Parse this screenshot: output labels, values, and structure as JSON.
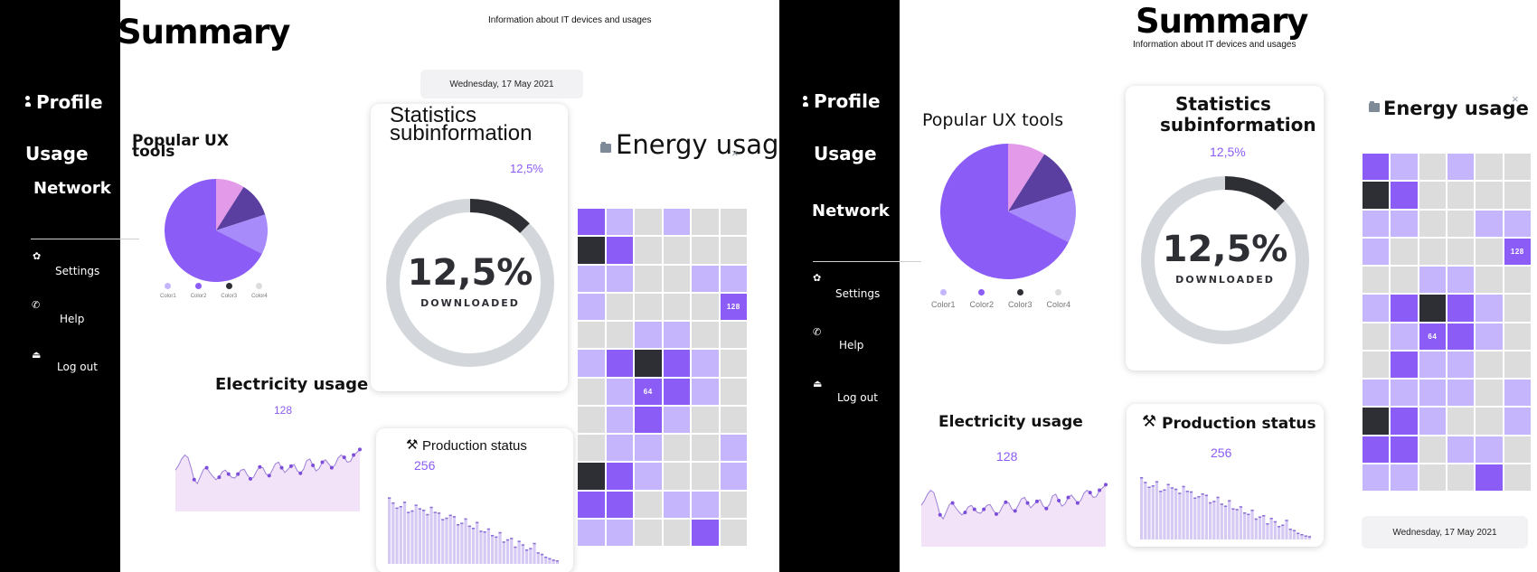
{
  "page": {
    "title": "Summary",
    "subtitle": "Information about IT devices and usages",
    "date": "Wednesday, 17 May 2021"
  },
  "sidebar": {
    "profile": "Profile",
    "usage": "Usage",
    "network": "Network",
    "settings": "Settings",
    "help": "Help",
    "logout": "Log out"
  },
  "ux_tools": {
    "title": "Popular UX tools",
    "legend": [
      "Color1",
      "Color2",
      "Color3",
      "Color4"
    ],
    "colors": [
      "#c4b5fd",
      "#8b5cf6",
      "#2d2f35",
      "#dcdcdc"
    ]
  },
  "statistics": {
    "title_line1": "Statistics",
    "title_line2": "subinformation",
    "percent_label": "12,5%",
    "big_value": "12,5%",
    "caption": "DOWNLOADED",
    "fraction": 0.125
  },
  "electricity": {
    "title": "Electricity usage",
    "value": "128"
  },
  "production": {
    "title": "Production status",
    "value": "256"
  },
  "energy": {
    "title": "Energy usage",
    "colors": {
      "L": "#c4b5fd",
      "M": "#8b5cf6",
      "D": "#2d2f35",
      "G": "#dcdcdc"
    }
  },
  "chart_data": [
    {
      "type": "pie",
      "title": "Popular UX tools",
      "slices": [
        {
          "name": "Color1",
          "value": 67.5,
          "color": "#8b5cf6"
        },
        {
          "name": "Color2",
          "value": 12.5,
          "color": "#a78bfa"
        },
        {
          "name": "Color3",
          "value": 11,
          "color": "#5b3fa0"
        },
        {
          "name": "Color4",
          "value": 9,
          "color": "#e39ae8"
        }
      ]
    },
    {
      "type": "area",
      "title": "Electricity usage",
      "x": [
        0,
        1,
        2,
        3,
        4,
        5,
        6,
        7,
        8,
        9,
        10,
        11,
        12,
        13,
        14,
        15,
        16,
        17,
        18,
        19,
        20,
        21,
        22,
        23,
        24,
        25,
        26,
        27,
        28,
        29,
        30,
        31,
        32,
        33,
        34,
        35,
        36,
        37,
        38,
        39,
        40,
        41,
        42,
        43,
        44,
        45,
        46,
        47,
        48,
        49,
        50,
        51,
        52,
        53,
        54,
        55,
        56,
        57,
        58,
        59
      ],
      "values": [
        52,
        58,
        66,
        71,
        68,
        55,
        40,
        35,
        44,
        53,
        55,
        49,
        44,
        40,
        43,
        50,
        52,
        47,
        43,
        42,
        47,
        52,
        53,
        46,
        41,
        43,
        51,
        56,
        55,
        47,
        45,
        52,
        60,
        62,
        55,
        49,
        53,
        57,
        59,
        51,
        48,
        53,
        64,
        66,
        58,
        51,
        54,
        62,
        65,
        60,
        55,
        58,
        67,
        71,
        68,
        62,
        63,
        71,
        74,
        78
      ],
      "markers": [
        6,
        10,
        14,
        17,
        20,
        24,
        27,
        30,
        34,
        37,
        40,
        44,
        47,
        50,
        54,
        57,
        59
      ],
      "ylim": [
        0,
        100
      ]
    },
    {
      "type": "bar",
      "title": "Production status",
      "categories": [
        "1",
        "2",
        "3",
        "4",
        "5",
        "6",
        "7",
        "8",
        "9",
        "10",
        "11",
        "12",
        "13",
        "14",
        "15",
        "16",
        "17",
        "18",
        "19",
        "20",
        "21",
        "22",
        "23",
        "24",
        "25",
        "26",
        "27",
        "28",
        "29",
        "30",
        "31",
        "32",
        "33",
        "34",
        "35",
        "36",
        "37",
        "38",
        "39",
        "40",
        "41",
        "42",
        "43",
        "44",
        "45"
      ],
      "values": [
        92,
        85,
        78,
        80,
        86,
        72,
        74,
        82,
        77,
        75,
        69,
        79,
        72,
        71,
        62,
        64,
        68,
        66,
        55,
        57,
        63,
        53,
        50,
        58,
        46,
        45,
        49,
        40,
        38,
        44,
        31,
        34,
        36,
        24,
        32,
        27,
        20,
        22,
        29,
        16,
        14,
        10,
        8,
        6,
        5
      ],
      "ylim": [
        0,
        100
      ]
    },
    {
      "type": "heatmap",
      "title": "Energy usage",
      "columns": 6,
      "rows_a": [
        "MLGLGG",
        "DMGGGG",
        "LLGGLL",
        "LGGGGM",
        "GGLLGG",
        "LMDMLG",
        "GLMMLG",
        "GLMLGG",
        "GLLGGL",
        "DMLGGL",
        "MMGLLG",
        "LLGGMG"
      ],
      "labels_a": {
        "3-5": "128",
        "6-2": "64"
      },
      "rows_b": [
        "MLGLGG",
        "DMGGGG",
        "LLGGLL",
        "LGGGGM",
        "GGLLGG",
        "LMDMLG",
        "GLMMLG",
        "GMLLGG",
        "LLLLGL",
        "DMLGGL",
        "MMGLLG",
        "LLGGMG"
      ],
      "labels_b": {
        "3-5": "128",
        "6-2": "64"
      }
    }
  ]
}
